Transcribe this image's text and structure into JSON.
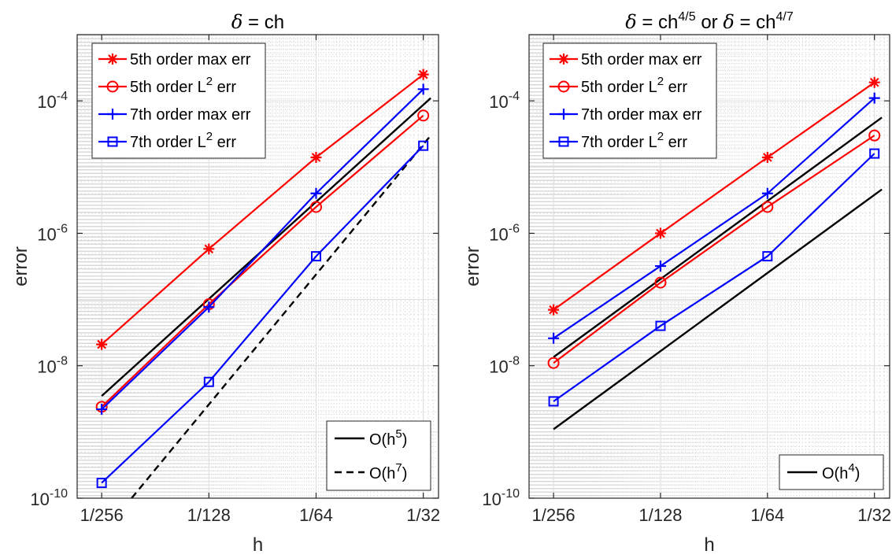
{
  "chart_data": [
    {
      "type": "line",
      "title": "δ = ch",
      "title_parts": [
        "δ",
        " = ch"
      ],
      "xlabel": "h",
      "ylabel": "error",
      "xscale": "log2",
      "yscale": "log10",
      "xlim": [
        "1/300",
        "1/29"
      ],
      "ylim": [
        1e-10,
        0.001
      ],
      "grid": true,
      "minor_grid": true,
      "x": [
        "1/256",
        "1/128",
        "1/64",
        "1/32"
      ],
      "x_ticks": [
        "1/256",
        "1/128",
        "1/64",
        "1/32"
      ],
      "y_ticks": [
        {
          "base": "10",
          "exp": "-10",
          "value": 1e-10
        },
        {
          "base": "10",
          "exp": "-8",
          "value": 1e-08
        },
        {
          "base": "10",
          "exp": "-6",
          "value": 1e-06
        },
        {
          "base": "10",
          "exp": "-4",
          "value": 0.0001
        }
      ],
      "series": [
        {
          "name": "5th order max err",
          "name_parts": [
            "5th order max err",
            "",
            ""
          ],
          "color": "#ff0000",
          "marker": "asterisk",
          "style": "solid",
          "values": [
            2.1e-08,
            5.8e-07,
            1.4e-05,
            0.00025
          ]
        },
        {
          "name": "5th order L² err",
          "name_parts": [
            "5th order L",
            "2",
            " err"
          ],
          "color": "#ff0000",
          "marker": "circle",
          "style": "solid",
          "values": [
            2.4e-09,
            8.5e-08,
            2.5e-06,
            6e-05
          ]
        },
        {
          "name": "7th order max err",
          "name_parts": [
            "7th order max err",
            "",
            ""
          ],
          "color": "#0000ff",
          "marker": "plus",
          "style": "solid",
          "values": [
            2.2e-09,
            7.7e-08,
            4e-06,
            0.00015
          ]
        },
        {
          "name": "7th order L² err",
          "name_parts": [
            "7th order L",
            "2",
            " err"
          ],
          "color": "#0000ff",
          "marker": "square",
          "style": "solid",
          "values": [
            1.7e-10,
            5.7e-09,
            4.5e-07,
            2.1e-05
          ]
        }
      ],
      "reference_lines": [
        {
          "name": "O(h⁵)",
          "name_parts": [
            "O(h",
            "5",
            ")"
          ],
          "color": "#000000",
          "style": "solid",
          "x": [
            "1/256",
            "1/30.5"
          ],
          "values": [
            3.5e-09,
            0.00011
          ]
        },
        {
          "name": "O(h⁷)",
          "name_parts": [
            "O(h",
            "7",
            ")"
          ],
          "color": "#000000",
          "style": "dashed",
          "x": [
            "1/211",
            "1/30.5"
          ],
          "values": [
            1e-10,
            3e-05
          ]
        }
      ],
      "legend_position": "top-left",
      "ref_legend_position": "bottom-right"
    },
    {
      "type": "line",
      "title": "δ = ch⁴ᐟ⁵ or δ = ch⁴ᐟ⁷",
      "title_parts": [
        "δ",
        " = ch",
        "4/5",
        " or ",
        "δ",
        " = ch",
        "4/7"
      ],
      "xlabel": "h",
      "ylabel": "error",
      "xscale": "log2",
      "yscale": "log10",
      "xlim": [
        "1/300",
        "1/29"
      ],
      "ylim": [
        1e-10,
        0.001
      ],
      "grid": true,
      "minor_grid": true,
      "x": [
        "1/256",
        "1/128",
        "1/64",
        "1/32"
      ],
      "x_ticks": [
        "1/256",
        "1/128",
        "1/64",
        "1/32"
      ],
      "y_ticks": [
        {
          "base": "10",
          "exp": "-10",
          "value": 1e-10
        },
        {
          "base": "10",
          "exp": "-8",
          "value": 1e-08
        },
        {
          "base": "10",
          "exp": "-6",
          "value": 1e-06
        },
        {
          "base": "10",
          "exp": "-4",
          "value": 0.0001
        }
      ],
      "series": [
        {
          "name": "5th order max err",
          "name_parts": [
            "5th order max err",
            "",
            ""
          ],
          "color": "#ff0000",
          "marker": "asterisk",
          "style": "solid",
          "values": [
            7e-08,
            1e-06,
            1.4e-05,
            0.00019
          ]
        },
        {
          "name": "5th order L² err",
          "name_parts": [
            "5th order L",
            "2",
            " err"
          ],
          "color": "#ff0000",
          "marker": "circle",
          "style": "solid",
          "values": [
            1.1e-08,
            1.8e-07,
            2.5e-06,
            3e-05
          ]
        },
        {
          "name": "7th order max err",
          "name_parts": [
            "7th order max err",
            "",
            ""
          ],
          "color": "#0000ff",
          "marker": "plus",
          "style": "solid",
          "values": [
            2.6e-08,
            3.2e-07,
            4e-06,
            0.00011
          ]
        },
        {
          "name": "7th order L² err",
          "name_parts": [
            "7th order L",
            "2",
            " err"
          ],
          "color": "#0000ff",
          "marker": "square",
          "style": "solid",
          "values": [
            2.9e-09,
            4e-08,
            4.5e-07,
            1.6e-05
          ]
        }
      ],
      "reference_lines": [
        {
          "name": "O(h⁴)",
          "name_parts": [
            "O(h",
            "4",
            ")"
          ],
          "color": "#000000",
          "style": "solid",
          "x": [
            "1/256",
            "1/30.5"
          ],
          "values": [
            1.35e-08,
            5.6e-05
          ]
        },
        {
          "name": "",
          "name_parts": [
            "",
            "",
            ""
          ],
          "color": "#000000",
          "style": "solid",
          "x": [
            "1/256",
            "1/30.5"
          ],
          "values": [
            1.1e-09,
            4.6e-06
          ]
        }
      ],
      "legend_position": "top-left",
      "ref_legend_position": "bottom-right"
    }
  ]
}
